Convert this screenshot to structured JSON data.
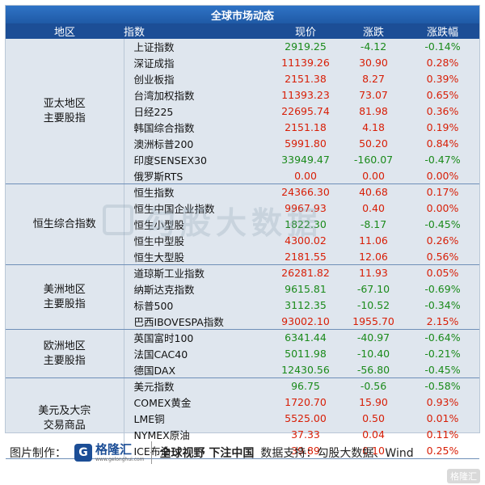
{
  "title": "全球市场动态",
  "headers": {
    "region": "地区",
    "name": "指数",
    "price": "现价",
    "change": "涨跌",
    "pct": "涨跌幅"
  },
  "groups": [
    {
      "region": "亚太地区\n主要股指",
      "rows": [
        {
          "name": "上证指数",
          "price": "2919.25",
          "change": "-4.12",
          "pct": "-0.14%",
          "dir": "down"
        },
        {
          "name": "深证成指",
          "price": "11139.26",
          "change": "30.90",
          "pct": "0.28%",
          "dir": "up"
        },
        {
          "name": "创业板指",
          "price": "2151.38",
          "change": "8.27",
          "pct": "0.39%",
          "dir": "up"
        },
        {
          "name": "台湾加权指数",
          "price": "11393.23",
          "change": "73.07",
          "pct": "0.65%",
          "dir": "up"
        },
        {
          "name": "日经225",
          "price": "22695.74",
          "change": "81.98",
          "pct": "0.36%",
          "dir": "up"
        },
        {
          "name": "韩国综合指数",
          "price": "2151.18",
          "change": "4.18",
          "pct": "0.19%",
          "dir": "up"
        },
        {
          "name": "澳洲标普200",
          "price": "5991.80",
          "change": "50.20",
          "pct": "0.84%",
          "dir": "up"
        },
        {
          "name": "印度SENSEX30",
          "price": "33949.47",
          "change": "-160.07",
          "pct": "-0.47%",
          "dir": "down"
        },
        {
          "name": "俄罗斯RTS",
          "price": "0.00",
          "change": "0.00",
          "pct": "0.00%",
          "dir": "up"
        }
      ]
    },
    {
      "region": "恒生综合指数",
      "rows": [
        {
          "name": "恒生指数",
          "price": "24366.30",
          "change": "40.68",
          "pct": "0.17%",
          "dir": "up"
        },
        {
          "name": "恒生中国企业指数",
          "price": "9967.93",
          "change": "0.40",
          "pct": "0.00%",
          "dir": "up"
        },
        {
          "name": "恒生小型股",
          "price": "1822.30",
          "change": "-8.17",
          "pct": "-0.45%",
          "dir": "down"
        },
        {
          "name": "恒生中型股",
          "price": "4300.02",
          "change": "11.06",
          "pct": "0.26%",
          "dir": "up"
        },
        {
          "name": "恒生大型股",
          "price": "2181.55",
          "change": "12.06",
          "pct": "0.56%",
          "dir": "up"
        }
      ]
    },
    {
      "region": "美洲地区\n主要股指",
      "rows": [
        {
          "name": "道琼斯工业指数",
          "price": "26281.82",
          "change": "11.93",
          "pct": "0.05%",
          "dir": "up"
        },
        {
          "name": "纳斯达克指数",
          "price": "9615.81",
          "change": "-67.10",
          "pct": "-0.69%",
          "dir": "down"
        },
        {
          "name": "标普500",
          "price": "3112.35",
          "change": "-10.52",
          "pct": "-0.34%",
          "dir": "down"
        },
        {
          "name": "巴西IBOVESPA指数",
          "price": "93002.10",
          "change": "1955.70",
          "pct": "2.15%",
          "dir": "up"
        }
      ]
    },
    {
      "region": "欧洲地区\n主要股指",
      "rows": [
        {
          "name": "英国富时100",
          "price": "6341.44",
          "change": "-40.97",
          "pct": "-0.64%",
          "dir": "down"
        },
        {
          "name": "法国CAC40",
          "price": "5011.98",
          "change": "-10.40",
          "pct": "-0.21%",
          "dir": "down"
        },
        {
          "name": "德国DAX",
          "price": "12430.56",
          "change": "-56.80",
          "pct": "-0.45%",
          "dir": "down"
        }
      ]
    },
    {
      "region": "美元及大宗\n交易商品",
      "rows": [
        {
          "name": "美元指数",
          "price": "96.75",
          "change": "-0.56",
          "pct": "-0.58%",
          "dir": "down"
        },
        {
          "name": "COMEX黄金",
          "price": "1720.70",
          "change": "15.90",
          "pct": "0.93%",
          "dir": "up"
        },
        {
          "name": "LME铜",
          "price": "5525.00",
          "change": "0.50",
          "pct": "0.01%",
          "dir": "up"
        },
        {
          "name": "NYMEX原油",
          "price": "37.33",
          "change": "0.04",
          "pct": "0.11%",
          "dir": "up"
        },
        {
          "name": "ICE布油",
          "price": "39.89",
          "change": "0.10",
          "pct": "0.25%",
          "dir": "up"
        }
      ]
    }
  ],
  "watermark": "勾股大数据",
  "footer": {
    "maker_label": "图片制作：",
    "logo_cn": "格隆汇",
    "logo_url": "www.gelonghui.com",
    "slogan": "全球视野 下注中国",
    "support": "数据支持：勾股大数据、Wind",
    "corner_badge": "格隆汇"
  },
  "colors": {
    "up": "#d81e06",
    "down": "#1a8a1a",
    "header": "#1c4e96",
    "board": "#dfe6ee"
  }
}
